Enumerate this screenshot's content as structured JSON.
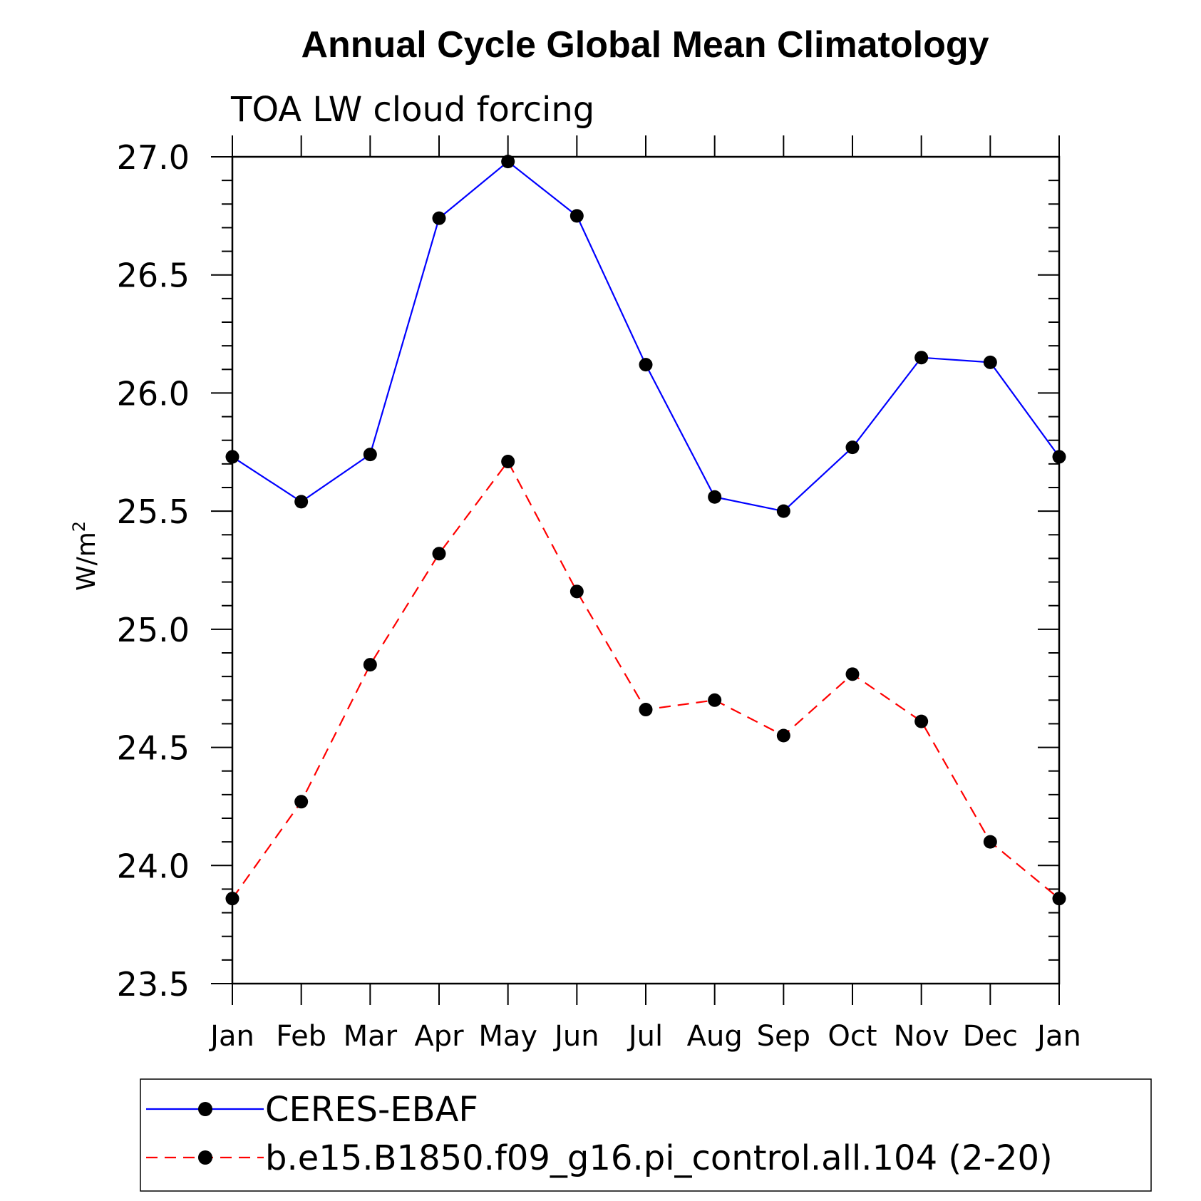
{
  "chart_data": {
    "type": "line",
    "title": "Annual Cycle Global Mean Climatology",
    "subtitle": "TOA LW cloud forcing",
    "ylabel_base": "W/m",
    "ylabel_sup": "2",
    "categories": [
      "Jan",
      "Feb",
      "Mar",
      "Apr",
      "May",
      "Jun",
      "Jul",
      "Aug",
      "Sep",
      "Oct",
      "Nov",
      "Dec",
      "Jan"
    ],
    "ylim": [
      23.5,
      27.0
    ],
    "yticks": [
      "23.5",
      "24.0",
      "24.5",
      "25.0",
      "25.5",
      "26.0",
      "26.5",
      "27.0"
    ],
    "series": [
      {
        "name": "CERES-EBAF",
        "color": "#0000ff",
        "dash": "solid",
        "values": [
          25.73,
          25.54,
          25.74,
          26.74,
          26.98,
          26.75,
          26.12,
          25.56,
          25.5,
          25.77,
          26.15,
          26.13,
          25.73
        ]
      },
      {
        "name": "b.e15.B1850.f09_g16.pi_control.all.104 (2-20)",
        "color": "#ff0000",
        "dash": "dashed",
        "values": [
          23.86,
          24.27,
          24.85,
          25.32,
          25.71,
          25.16,
          24.66,
          24.7,
          24.55,
          24.81,
          24.61,
          24.1,
          23.86
        ]
      }
    ]
  }
}
